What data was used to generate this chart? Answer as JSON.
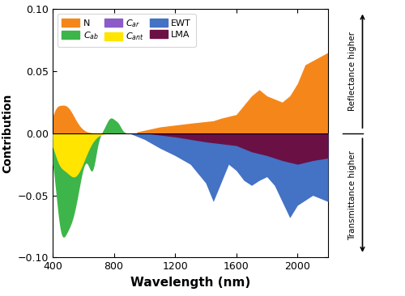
{
  "xlabel": "Wavelength (nm)",
  "ylabel": "Contribution",
  "xlim": [
    400,
    2200
  ],
  "ylim": [
    -0.1,
    0.1
  ],
  "yticks": [
    -0.1,
    -0.05,
    0.0,
    0.05,
    0.1
  ],
  "xticks": [
    400,
    800,
    1200,
    1600,
    2000
  ],
  "colors": {
    "N": "#F5871A",
    "Cab": "#3DB54A",
    "Car": "#8B5CC8",
    "Cant": "#FFE500",
    "EWT": "#4472C4",
    "LMA": "#6B1045"
  },
  "right_label_top": "Reflectance higher",
  "right_label_bottom": "Transmittance higher"
}
